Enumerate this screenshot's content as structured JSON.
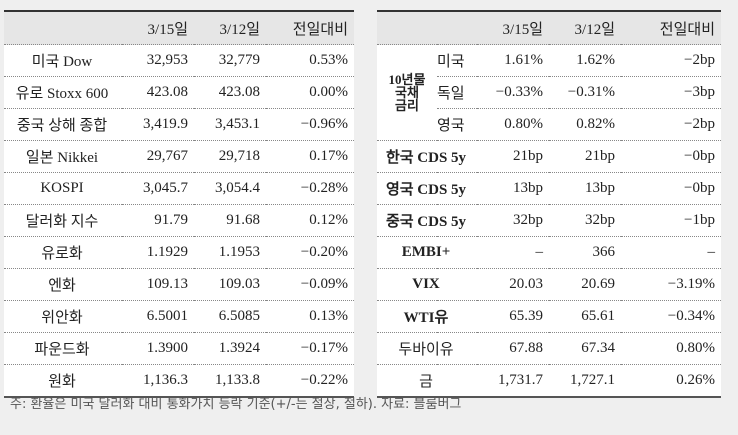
{
  "left_table": {
    "headers": [
      "",
      "3/15일",
      "3/12일",
      "전일대비"
    ],
    "rows": [
      {
        "label": "미국 Dow",
        "v1": "32,953",
        "v2": "32,779",
        "chg": "0.53%"
      },
      {
        "label": "유로 Stoxx 600",
        "v1": "423.08",
        "v2": "423.08",
        "chg": "0.00%"
      },
      {
        "label": "중국 상해 종합",
        "v1": "3,419.9",
        "v2": "3,453.1",
        "chg": "−0.96%"
      },
      {
        "label": "일본 Nikkei",
        "v1": "29,767",
        "v2": "29,718",
        "chg": "0.17%"
      },
      {
        "label": "KOSPI",
        "v1": "3,045.7",
        "v2": "3,054.4",
        "chg": "−0.28%"
      },
      {
        "label": "달러화 지수",
        "v1": "91.79",
        "v2": "91.68",
        "chg": "0.12%"
      },
      {
        "label": "유로화",
        "v1": "1.1929",
        "v2": "1.1953",
        "chg": "−0.20%"
      },
      {
        "label": "엔화",
        "v1": "109.13",
        "v2": "109.03",
        "chg": "−0.09%"
      },
      {
        "label": "위안화",
        "v1": "6.5001",
        "v2": "6.5085",
        "chg": "0.13%"
      },
      {
        "label": "파운드화",
        "v1": "1.3900",
        "v2": "1.3924",
        "chg": "−0.17%"
      },
      {
        "label": "원화",
        "v1": "1,136.3",
        "v2": "1,133.8",
        "chg": "−0.22%"
      }
    ]
  },
  "right_table": {
    "headers": [
      "",
      "3/15일",
      "3/12일",
      "전일대비"
    ],
    "bond_group": {
      "label_lines": [
        "10년물",
        "국채",
        "금리"
      ],
      "rows": [
        {
          "label": "미국",
          "v1": "1.61%",
          "v2": "1.62%",
          "chg": "−2bp"
        },
        {
          "label": "독일",
          "v1": "−0.33%",
          "v2": "−0.31%",
          "chg": "−3bp"
        },
        {
          "label": "영국",
          "v1": "0.80%",
          "v2": "0.82%",
          "chg": "−2bp"
        }
      ]
    },
    "rows": [
      {
        "label": "한국 CDS 5y",
        "v1": "21bp",
        "v2": "21bp",
        "chg": "−0bp"
      },
      {
        "label": "영국 CDS 5y",
        "v1": "13bp",
        "v2": "13bp",
        "chg": "−0bp"
      },
      {
        "label": "중국 CDS 5y",
        "v1": "32bp",
        "v2": "32bp",
        "chg": "−1bp"
      },
      {
        "label": "EMBI+",
        "v1": "–",
        "v2": "366",
        "chg": "–"
      },
      {
        "label": "VIX",
        "v1": "20.03",
        "v2": "20.69",
        "chg": "−3.19%"
      },
      {
        "label": "WTI유",
        "v1": "65.39",
        "v2": "65.61",
        "chg": "−0.34%"
      },
      {
        "label": "두바이유",
        "v1": "67.88",
        "v2": "67.34",
        "chg": "0.80%"
      },
      {
        "label": "금",
        "v1": "1,731.7",
        "v2": "1,727.1",
        "chg": "0.26%"
      }
    ]
  },
  "footnote": "주: 환율은 미국 달러화 대비 통화가치 등락 기준(+/-는 절상, 절하). 자료: 블룸버그"
}
